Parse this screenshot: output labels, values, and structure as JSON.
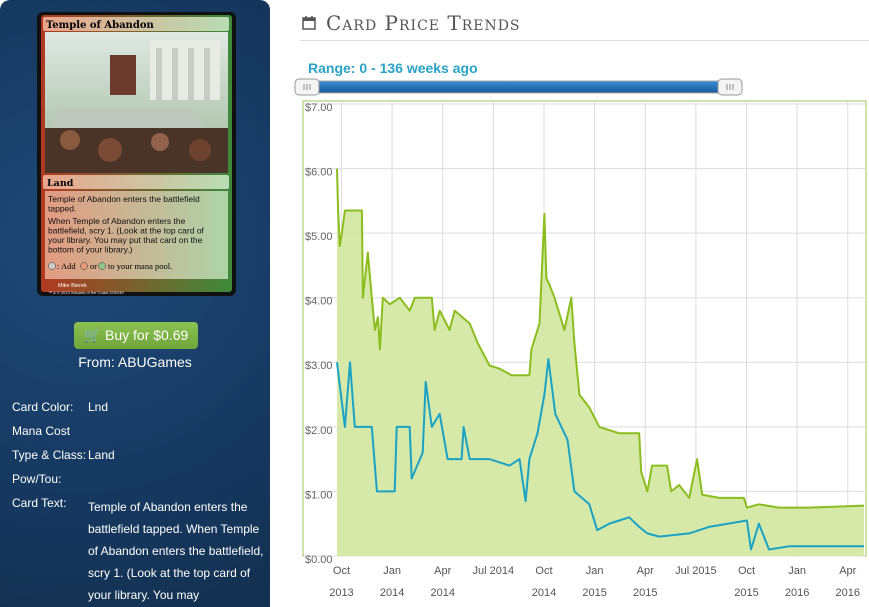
{
  "card": {
    "name": "Temple of Abandon",
    "type_line": "Land",
    "rules_text": [
      "Temple of Abandon enters the battlefield",
      "tapped.",
      "When Temple of Abandon enters the",
      "battlefield, scry 1. (Look at the top card of",
      "your library. You may put that card on the",
      "bottom of your library.)"
    ],
    "mana_text": [
      ": Add",
      "or",
      "to your mana pool."
    ],
    "artist": "Mike Bierek",
    "copyright": "™ & © 2013 Wizards of the Coast 229/249"
  },
  "buy": {
    "button": "Buy for $0.69",
    "source": "From: ABUGames"
  },
  "details": [
    {
      "label": "Card Color:",
      "value": "Lnd"
    },
    {
      "label": "Mana Cost"
    },
    {
      "label": "Type & Class:",
      "value": "Land"
    },
    {
      "label": "Pow/Tou:"
    },
    {
      "label": "Card Text:",
      "value": "Temple of Abandon enters the battlefield tapped. When Temple of Abandon enters the battlefield, scry 1. (Look at the top card of your library. You may"
    }
  ],
  "header": {
    "title": "Card Price Trends",
    "range": "Range: 0 - 136 weeks ago"
  },
  "chart_data": {
    "type": "line",
    "grid": true,
    "xlim": [
      2013.57,
      2016.34
    ],
    "ylim": [
      0,
      7
    ],
    "yticks": [
      {
        "value": 0,
        "label": "$0.00"
      },
      {
        "value": 1,
        "label": "$1.00"
      },
      {
        "value": 2,
        "label": "$2.00"
      },
      {
        "value": 3,
        "label": "$3.00"
      },
      {
        "value": 4,
        "label": "$4.00"
      },
      {
        "value": 5,
        "label": "$5.00"
      },
      {
        "value": 6,
        "label": "$6.00"
      },
      {
        "value": 7,
        "label": "$7.00"
      }
    ],
    "xticks": [
      {
        "value": 2013.75,
        "label": "Oct",
        "sublabel": "2013"
      },
      {
        "value": 2014.0,
        "label": "Jan",
        "sublabel": "2014"
      },
      {
        "value": 2014.25,
        "label": "Apr",
        "sublabel": "2014"
      },
      {
        "value": 2014.5,
        "label": "Jul 2014"
      },
      {
        "value": 2014.75,
        "label": "Oct",
        "sublabel": "2014"
      },
      {
        "value": 2015.0,
        "label": "Jan",
        "sublabel": "2015"
      },
      {
        "value": 2015.25,
        "label": "Apr",
        "sublabel": "2015"
      },
      {
        "value": 2015.5,
        "label": "Jul 2015"
      },
      {
        "value": 2015.75,
        "label": "Oct",
        "sublabel": "2015"
      },
      {
        "value": 2016.0,
        "label": "Jan",
        "sublabel": "2016"
      },
      {
        "value": 2016.25,
        "label": "Apr",
        "sublabel": "2016"
      }
    ],
    "series": [
      {
        "color": "#8cbd1e",
        "fill": "#d4e8a3",
        "x": [
          2013.728,
          2013.733,
          2013.742,
          2013.752,
          2013.767,
          2013.851,
          2013.856,
          2013.88,
          2013.9,
          2013.915,
          2013.93,
          2013.94,
          2013.954,
          2013.989,
          2014.038,
          2014.087,
          2014.112,
          2014.196,
          2014.21,
          2014.235,
          2014.284,
          2014.309,
          2014.383,
          2014.422,
          2014.481,
          2014.531,
          2014.59,
          2014.678,
          2014.688,
          2014.728,
          2014.752,
          2014.762,
          2014.777,
          2014.802,
          2014.851,
          2014.885,
          2014.9,
          2014.925,
          2014.974,
          2015.023,
          2015.122,
          2015.22,
          2015.23,
          2015.26,
          2015.284,
          2015.358,
          2015.378,
          2015.417,
          2015.467,
          2015.506,
          2015.531,
          2015.614,
          2015.737,
          2015.752,
          2015.811,
          2015.91,
          2016.058,
          2016.33
        ],
        "values": [
          6.0,
          5.4,
          4.8,
          5.0,
          5.35,
          5.35,
          4.0,
          4.7,
          4.0,
          3.5,
          3.7,
          3.2,
          4.0,
          3.9,
          4.0,
          3.8,
          4.0,
          4.0,
          3.5,
          3.8,
          3.5,
          3.8,
          3.6,
          3.3,
          2.95,
          2.9,
          2.8,
          2.8,
          3.2,
          3.6,
          5.3,
          4.3,
          4.2,
          4.0,
          3.5,
          4.0,
          3.3,
          2.5,
          2.3,
          2.0,
          1.9,
          1.9,
          1.3,
          1.0,
          1.4,
          1.4,
          1.0,
          1.1,
          0.9,
          1.5,
          0.95,
          0.9,
          0.9,
          0.75,
          0.8,
          0.75,
          0.75,
          0.78
        ]
      },
      {
        "color": "#1ba3c6",
        "x": [
          2013.728,
          2013.767,
          2013.792,
          2013.816,
          2013.9,
          2013.925,
          2014.013,
          2014.023,
          2014.087,
          2014.097,
          2014.151,
          2014.166,
          2014.196,
          2014.235,
          2014.274,
          2014.343,
          2014.353,
          2014.383,
          2014.481,
          2014.58,
          2014.629,
          2014.659,
          2014.678,
          2014.718,
          2014.752,
          2014.772,
          2014.806,
          2014.836,
          2014.866,
          2014.9,
          2014.974,
          2015.013,
          2015.072,
          2015.122,
          2015.171,
          2015.22,
          2015.26,
          2015.319,
          2015.467,
          2015.565,
          2015.752,
          2015.772,
          2015.811,
          2015.861,
          2015.959,
          2016.33
        ],
        "values": [
          3.0,
          2.0,
          3.0,
          2.0,
          2.0,
          1.0,
          1.0,
          2.0,
          2.0,
          1.2,
          1.6,
          2.7,
          2.0,
          2.2,
          1.5,
          1.5,
          2.0,
          1.5,
          1.5,
          1.4,
          1.5,
          0.85,
          1.5,
          1.9,
          2.5,
          3.05,
          2.2,
          2.0,
          1.8,
          1.0,
          0.8,
          0.4,
          0.5,
          0.55,
          0.6,
          0.45,
          0.35,
          0.3,
          0.35,
          0.45,
          0.55,
          0.1,
          0.5,
          0.1,
          0.15,
          0.15
        ]
      }
    ]
  }
}
